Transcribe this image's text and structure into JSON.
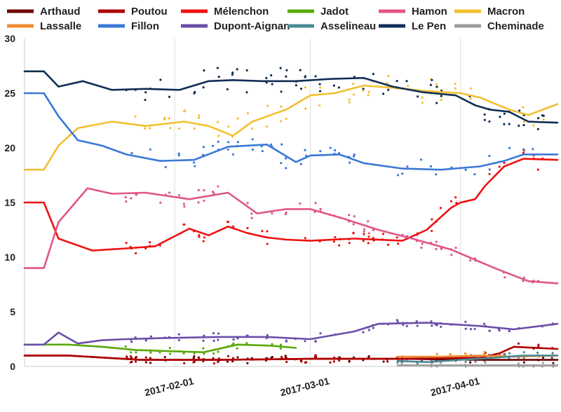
{
  "chart_data": {
    "type": "line",
    "title": "",
    "xlabel": "",
    "ylabel": "",
    "x_range": [
      "2017-01-01",
      "2017-04-21"
    ],
    "ylim": [
      0,
      30
    ],
    "y_ticks": [
      0,
      5,
      10,
      15,
      20,
      25,
      30
    ],
    "x_ticks": [
      "2017-02-01",
      "2017-03-01",
      "2017-04-01"
    ],
    "grid": "x-major vertical lines",
    "legend": "top",
    "series": [
      {
        "name": "Arthaud",
        "color": "#6b0000",
        "x": [
          "2017-01-01",
          "2017-01-10",
          "2017-01-25",
          "2017-02-10",
          "2017-03-01",
          "2017-03-20",
          "2017-04-05",
          "2017-04-10",
          "2017-04-21"
        ],
        "y": [
          1.0,
          1.0,
          0.6,
          0.6,
          0.7,
          0.7,
          0.6,
          0.6,
          0.6
        ]
      },
      {
        "name": "Poutou",
        "color": "#b00000",
        "x": [
          "2017-01-01",
          "2017-01-10",
          "2017-01-25",
          "2017-02-10",
          "2017-03-01",
          "2017-03-20",
          "2017-04-05",
          "2017-04-09",
          "2017-04-12",
          "2017-04-21"
        ],
        "y": [
          1.0,
          1.0,
          0.6,
          0.6,
          0.7,
          0.7,
          0.8,
          1.2,
          1.8,
          1.6
        ]
      },
      {
        "name": "Mélenchon",
        "color": "#ee1111",
        "x": [
          "2017-01-01",
          "2017-01-05",
          "2017-01-08",
          "2017-01-15",
          "2017-01-22",
          "2017-01-28",
          "2017-02-04",
          "2017-02-08",
          "2017-02-12",
          "2017-02-16",
          "2017-02-20",
          "2017-02-24",
          "2017-03-01",
          "2017-03-10",
          "2017-03-20",
          "2017-03-25",
          "2017-03-30",
          "2017-04-01",
          "2017-04-04",
          "2017-04-06",
          "2017-04-10",
          "2017-04-14",
          "2017-04-21"
        ],
        "y": [
          15.0,
          15.0,
          11.7,
          10.6,
          10.8,
          11.0,
          12.6,
          12.0,
          12.8,
          12.2,
          11.8,
          11.6,
          11.5,
          11.7,
          11.5,
          12.5,
          14.5,
          15.0,
          15.3,
          16.5,
          18.3,
          19.0,
          18.9
        ]
      },
      {
        "name": "Jadot",
        "color": "#5aa80a",
        "x": [
          "2017-01-01",
          "2017-01-10",
          "2017-01-17",
          "2017-01-24",
          "2017-01-31",
          "2017-02-07",
          "2017-02-14",
          "2017-02-21",
          "2017-02-26"
        ],
        "y": [
          2.0,
          2.0,
          1.8,
          1.5,
          1.4,
          1.3,
          2.0,
          1.9,
          1.7
        ]
      },
      {
        "name": "Hamon",
        "color": "#e05588",
        "x": [
          "2017-01-01",
          "2017-01-05",
          "2017-01-08",
          "2017-01-14",
          "2017-01-19",
          "2017-01-26",
          "2017-02-04",
          "2017-02-12",
          "2017-02-18",
          "2017-02-24",
          "2017-03-01",
          "2017-03-08",
          "2017-03-15",
          "2017-03-22",
          "2017-03-30",
          "2017-04-08",
          "2017-04-15",
          "2017-04-21"
        ],
        "y": [
          9.0,
          9.0,
          13.2,
          16.3,
          15.8,
          15.9,
          15.3,
          15.9,
          14.0,
          14.4,
          14.4,
          13.5,
          12.5,
          11.7,
          10.7,
          9.0,
          7.8,
          7.6
        ]
      },
      {
        "name": "Macron",
        "color": "#f2c030",
        "x": [
          "2017-01-01",
          "2017-01-05",
          "2017-01-08",
          "2017-01-12",
          "2017-01-19",
          "2017-01-26",
          "2017-02-03",
          "2017-02-08",
          "2017-02-13",
          "2017-02-17",
          "2017-02-24",
          "2017-03-01",
          "2017-03-06",
          "2017-03-12",
          "2017-03-18",
          "2017-03-25",
          "2017-04-01",
          "2017-04-05",
          "2017-04-11",
          "2017-04-15",
          "2017-04-21"
        ],
        "y": [
          18.0,
          18.0,
          20.2,
          21.8,
          22.4,
          22.0,
          22.4,
          22.0,
          21.1,
          22.4,
          23.5,
          24.8,
          25.0,
          25.7,
          25.5,
          25.2,
          25.0,
          24.6,
          23.5,
          23.0,
          24.0
        ]
      },
      {
        "name": "Lassalle",
        "color": "#f08c30",
        "x": [
          "2017-03-19",
          "2017-03-28",
          "2017-04-05",
          "2017-04-12",
          "2017-04-21"
        ],
        "y": [
          0.9,
          0.9,
          1.0,
          0.9,
          1.0
        ]
      },
      {
        "name": "Fillon",
        "color": "#3a78d6",
        "x": [
          "2017-01-01",
          "2017-01-05",
          "2017-01-08",
          "2017-01-12",
          "2017-01-17",
          "2017-01-22",
          "2017-01-29",
          "2017-02-05",
          "2017-02-12",
          "2017-02-20",
          "2017-02-26",
          "2017-03-01",
          "2017-03-07",
          "2017-03-12",
          "2017-03-20",
          "2017-03-28",
          "2017-04-05",
          "2017-04-10",
          "2017-04-14",
          "2017-04-21"
        ],
        "y": [
          25.0,
          25.0,
          22.9,
          20.7,
          20.2,
          19.4,
          18.8,
          18.9,
          20.1,
          20.3,
          18.7,
          19.3,
          19.4,
          18.6,
          18.1,
          18.0,
          18.3,
          18.8,
          19.4,
          19.4
        ]
      },
      {
        "name": "Dupont-Aignan",
        "color": "#6a4ea8",
        "x": [
          "2017-01-01",
          "2017-01-05",
          "2017-01-08",
          "2017-01-12",
          "2017-01-17",
          "2017-01-22",
          "2017-01-30",
          "2017-02-10",
          "2017-02-20",
          "2017-03-01",
          "2017-03-10",
          "2017-03-15",
          "2017-03-25",
          "2017-04-05",
          "2017-04-12",
          "2017-04-21"
        ],
        "y": [
          2.0,
          2.0,
          3.1,
          2.1,
          2.4,
          2.5,
          2.6,
          2.7,
          2.7,
          2.5,
          3.2,
          3.9,
          4.0,
          3.7,
          3.4,
          3.9
        ]
      },
      {
        "name": "Asselineau",
        "color": "#4a8a96",
        "x": [
          "2017-03-19",
          "2017-03-25",
          "2017-04-01",
          "2017-04-08",
          "2017-04-14",
          "2017-04-21"
        ],
        "y": [
          0.5,
          0.4,
          0.6,
          0.8,
          1.0,
          1.0
        ]
      },
      {
        "name": "Le Pen",
        "color": "#0f2e56",
        "x": [
          "2017-01-01",
          "2017-01-05",
          "2017-01-08",
          "2017-01-13",
          "2017-01-19",
          "2017-01-26",
          "2017-02-02",
          "2017-02-08",
          "2017-02-13",
          "2017-02-19",
          "2017-02-26",
          "2017-03-05",
          "2017-03-12",
          "2017-03-18",
          "2017-03-24",
          "2017-03-31",
          "2017-04-04",
          "2017-04-07",
          "2017-04-11",
          "2017-04-15",
          "2017-04-21"
        ],
        "y": [
          27.0,
          27.0,
          25.6,
          26.1,
          25.3,
          25.4,
          25.3,
          26.1,
          26.2,
          26.1,
          26.1,
          26.3,
          26.4,
          25.6,
          25.1,
          24.8,
          23.9,
          23.5,
          23.3,
          22.4,
          22.3
        ]
      },
      {
        "name": "Cheminade",
        "color": "#9c9c9c",
        "x": [
          "2017-03-19",
          "2017-04-01",
          "2017-04-12",
          "2017-04-21"
        ],
        "y": [
          0.1,
          0.1,
          0.1,
          0.1
        ]
      }
    ]
  }
}
